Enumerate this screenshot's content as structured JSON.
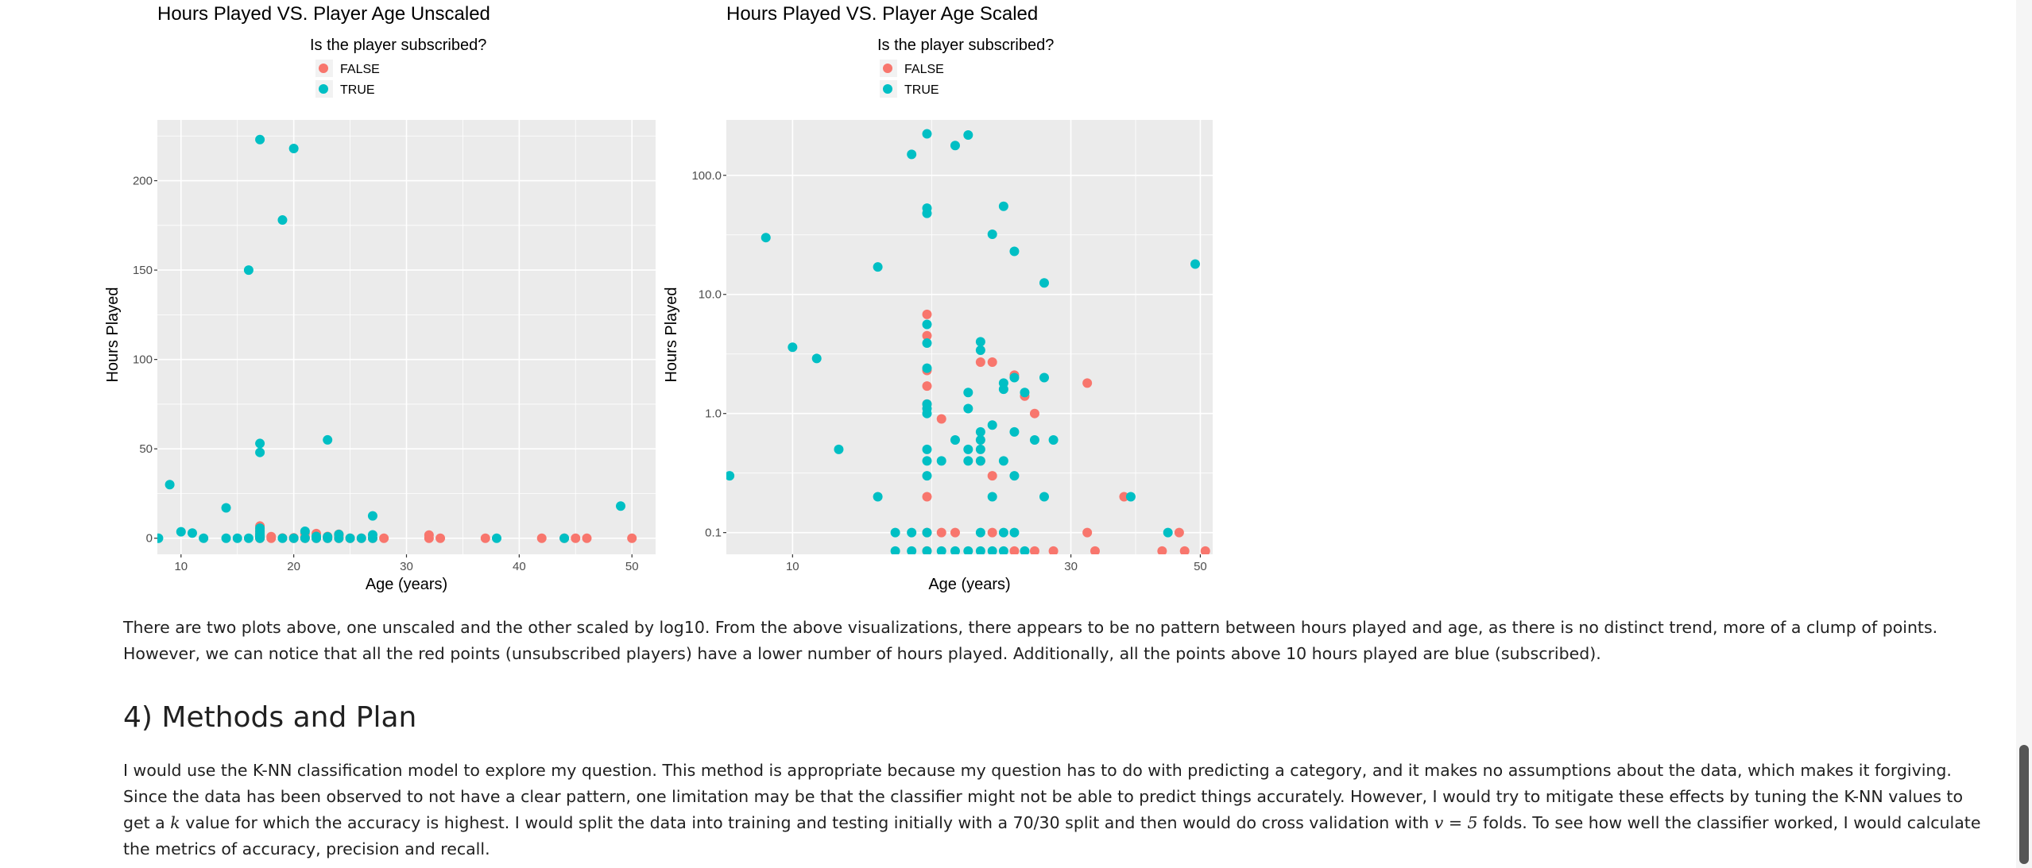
{
  "chart_data": [
    {
      "type": "scatter",
      "title": "Hours Played VS. Player Age Unscaled",
      "xlabel": "Age (years)",
      "ylabel": "Hours Played",
      "xlim": [
        7.9,
        52.1
      ],
      "ylim": [
        -9,
        234
      ],
      "yscale": "linear",
      "xticks": [
        10,
        20,
        30,
        40,
        50
      ],
      "yticks": [
        0,
        50,
        100,
        150,
        200
      ],
      "ytick_labels": [
        "0",
        "50",
        "100",
        "150",
        "200"
      ],
      "grid": true,
      "legend_title": "Is the player subscribed?",
      "legend_position": "top",
      "series": [
        {
          "name": "FALSE",
          "color": "#F8766D",
          "points": [
            [
              17,
              0
            ],
            [
              17,
              0.6
            ],
            [
              17,
              1
            ],
            [
              17,
              1.6
            ],
            [
              17,
              2.4
            ],
            [
              17,
              3.4
            ],
            [
              17,
              4.8
            ],
            [
              17,
              6.8
            ],
            [
              18,
              0.9
            ],
            [
              18,
              0
            ],
            [
              19,
              0.1
            ],
            [
              20,
              0
            ],
            [
              20,
              0.2
            ],
            [
              21,
              0
            ],
            [
              21,
              0.4
            ],
            [
              21,
              0.6
            ],
            [
              21,
              2.7
            ],
            [
              22,
              0
            ],
            [
              22,
              0.4
            ],
            [
              22,
              2.6
            ],
            [
              22,
              0.3
            ],
            [
              23,
              0
            ],
            [
              23,
              1
            ],
            [
              23,
              0.1
            ],
            [
              24,
              0
            ],
            [
              24,
              2.2
            ],
            [
              24,
              1.4
            ],
            [
              25,
              0
            ],
            [
              26,
              0
            ],
            [
              27,
              0
            ],
            [
              28,
              0
            ],
            [
              32,
              0
            ],
            [
              32,
              1.8
            ],
            [
              33,
              0
            ],
            [
              37,
              0
            ],
            [
              42,
              0
            ],
            [
              44,
              0
            ],
            [
              45,
              0
            ],
            [
              46,
              0
            ],
            [
              50,
              0
            ]
          ]
        },
        {
          "name": "TRUE",
          "color": "#00BFC4",
          "points": [
            [
              8,
              0
            ],
            [
              9,
              30
            ],
            [
              10,
              3.6
            ],
            [
              11,
              2.9
            ],
            [
              12,
              0
            ],
            [
              14,
              0
            ],
            [
              14,
              17
            ],
            [
              15,
              0
            ],
            [
              16,
              0
            ],
            [
              16,
              150
            ],
            [
              17,
              0
            ],
            [
              17,
              0.2
            ],
            [
              17,
              0.3
            ],
            [
              17,
              0.5
            ],
            [
              17,
              1
            ],
            [
              17,
              1.2
            ],
            [
              17,
              2.4
            ],
            [
              17,
              3.9
            ],
            [
              17,
              5.6
            ],
            [
              17,
              48
            ],
            [
              17,
              53
            ],
            [
              17,
              223
            ],
            [
              19,
              0
            ],
            [
              19,
              178
            ],
            [
              20,
              0
            ],
            [
              20,
              218
            ],
            [
              21,
              0
            ],
            [
              21,
              3.9
            ],
            [
              22,
              0
            ],
            [
              22,
              0.4
            ],
            [
              22,
              1
            ],
            [
              23,
              0
            ],
            [
              23,
              0.8
            ],
            [
              23,
              55
            ],
            [
              24,
              0
            ],
            [
              24,
              2.1
            ],
            [
              25,
              0
            ],
            [
              26,
              0
            ],
            [
              27,
              0
            ],
            [
              27,
              1.9
            ],
            [
              27,
              12.5
            ],
            [
              38,
              0
            ],
            [
              44,
              0
            ],
            [
              49,
              18
            ]
          ]
        }
      ]
    },
    {
      "type": "scatter",
      "title": "Hours Played VS. Player Age Scaled",
      "xlabel": "Age (years)",
      "ylabel": "Hours Played",
      "xscale": "log10",
      "yscale": "log10",
      "xlim": [
        7.7,
        52.5
      ],
      "ylim": [
        0.0657,
        292
      ],
      "xticks": [
        10,
        30,
        50
      ],
      "yticks": [
        0.1,
        1,
        10,
        100
      ],
      "ytick_labels": [
        "0.1",
        "1.0",
        "10.0",
        "100.0"
      ],
      "grid": true,
      "legend_title": "Is the player subscribed?",
      "legend_position": "top",
      "series": [
        {
          "name": "FALSE",
          "color": "#F8766D",
          "points": [
            [
              17,
              0.2
            ],
            [
              17,
              0.1
            ],
            [
              17,
              1.2
            ],
            [
              17,
              1.7
            ],
            [
              17,
              2.3
            ],
            [
              17,
              4.5
            ],
            [
              17,
              6.8
            ],
            [
              18,
              0.1
            ],
            [
              18,
              0.9
            ],
            [
              19,
              0.1
            ],
            [
              21,
              2.7
            ],
            [
              21,
              0.4
            ],
            [
              22,
              0.1
            ],
            [
              22,
              2.7
            ],
            [
              22,
              0.3
            ],
            [
              24,
              2.1
            ],
            [
              25,
              1.4
            ],
            [
              26,
              1
            ],
            [
              32,
              1.8
            ],
            [
              32,
              0.1
            ],
            [
              37,
              0.2
            ],
            [
              46,
              0.1
            ],
            [
              17,
              0.07
            ],
            [
              24,
              0.07
            ],
            [
              26,
              0.07
            ],
            [
              28,
              0.07
            ],
            [
              33,
              0.07
            ],
            [
              43,
              0.07
            ],
            [
              47,
              0.07
            ],
            [
              51,
              0.07
            ]
          ]
        },
        {
          "name": "TRUE",
          "color": "#00BFC4",
          "points": [
            [
              7.8,
              0.3
            ],
            [
              9,
              30
            ],
            [
              10,
              3.6
            ],
            [
              11,
              2.9
            ],
            [
              12,
              0.5
            ],
            [
              14,
              0.2
            ],
            [
              14,
              17
            ],
            [
              15,
              0.1
            ],
            [
              16,
              0.1
            ],
            [
              16,
              150
            ],
            [
              17,
              0.1
            ],
            [
              17,
              0.3
            ],
            [
              17,
              0.4
            ],
            [
              17,
              0.5
            ],
            [
              17,
              1
            ],
            [
              17,
              1.1
            ],
            [
              17,
              1.2
            ],
            [
              17,
              2.4
            ],
            [
              17,
              3.9
            ],
            [
              17,
              5.6
            ],
            [
              17,
              48
            ],
            [
              17,
              53
            ],
            [
              17,
              223
            ],
            [
              18,
              0.4
            ],
            [
              19,
              0.6
            ],
            [
              19,
              178
            ],
            [
              20,
              0.4
            ],
            [
              20,
              0.5
            ],
            [
              20,
              1.1
            ],
            [
              20,
              1.5
            ],
            [
              20,
              218
            ],
            [
              21,
              0.4
            ],
            [
              21,
              0.5
            ],
            [
              21,
              0.6
            ],
            [
              21,
              0.7
            ],
            [
              21,
              0.1
            ],
            [
              21,
              3.4
            ],
            [
              21,
              4
            ],
            [
              22,
              0.2
            ],
            [
              22,
              0.8
            ],
            [
              22,
              32
            ],
            [
              23,
              0.1
            ],
            [
              23,
              0.4
            ],
            [
              23,
              1.6
            ],
            [
              23,
              1.8
            ],
            [
              23,
              55
            ],
            [
              24,
              0.1
            ],
            [
              24,
              0.7
            ],
            [
              24,
              0.3
            ],
            [
              24,
              2
            ],
            [
              24,
              23
            ],
            [
              25,
              1.5
            ],
            [
              26,
              0.6
            ],
            [
              27,
              0.2
            ],
            [
              27,
              2
            ],
            [
              27,
              12.5
            ],
            [
              28,
              0.6
            ],
            [
              38,
              0.2
            ],
            [
              44,
              0.1
            ],
            [
              49,
              18
            ],
            [
              15,
              0.07
            ],
            [
              16,
              0.07
            ],
            [
              17,
              0.07
            ],
            [
              18,
              0.07
            ],
            [
              19,
              0.07
            ],
            [
              20,
              0.07
            ],
            [
              21,
              0.07
            ],
            [
              22,
              0.07
            ],
            [
              23,
              0.07
            ],
            [
              25,
              0.07
            ]
          ]
        }
      ]
    }
  ],
  "text": {
    "p1": "There are two plots above, one unscaled and the other scaled by log10. From the above visualizations, there appears to be no pattern between hours played and age, as there is no distinct trend, more of a clump of points. However, we can notice that all the red points (unsubscribed players) have a lower number of hours played. Additionally, all the points above 10 hours played are blue (subscribed).",
    "h2": "4) Methods and Plan",
    "p2a": "I would use the K-NN classification model to explore my question. This method is appropriate because my question has to do with predicting a category, and it makes no assumptions about the data, which makes it forgiving. Since the data has been observed to not have a clear pattern, one limitation may be that the classifier might not be able to predict things accurately. However, I would try to mitigate these effects by tuning the K-NN values to get a ",
    "p2k": "k",
    "p2b": " value for which the accuracy is highest. I would split the data into training and testing initially with a 70/30 split and then would do cross validation with ",
    "p2v": "v = 5",
    "p2c": " folds. To see how well the classifier worked, I would calculate the metrics of accuracy, precision and recall."
  }
}
